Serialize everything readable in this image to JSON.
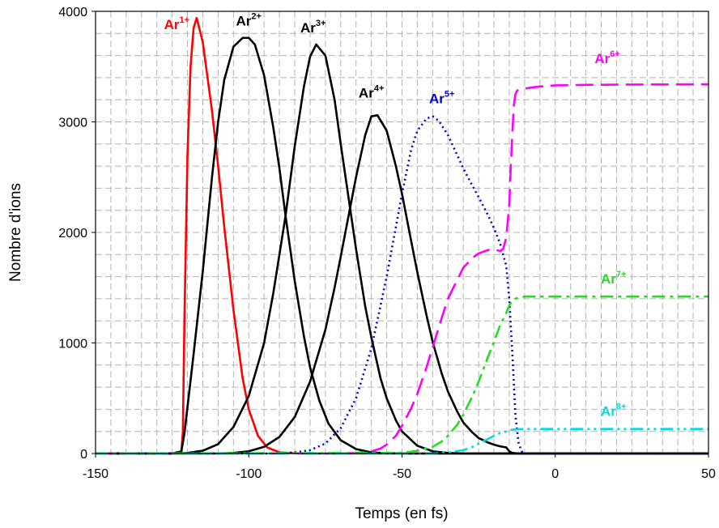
{
  "chart_data": {
    "type": "line",
    "title": "",
    "xlabel": "Temps (en fs)",
    "ylabel": "Nombre d'ions",
    "xlim": [
      -150,
      50
    ],
    "ylim": [
      0,
      4000
    ],
    "x_ticks": [
      -150,
      -100,
      -50,
      0,
      50
    ],
    "y_ticks": [
      0,
      1000,
      2000,
      3000,
      4000
    ],
    "x_tick_labels": [
      "-150",
      "-100",
      "-50",
      "0",
      "50"
    ],
    "y_tick_labels": [
      "0",
      "1000",
      "2000",
      "3000",
      "4000"
    ],
    "grid": "dashed major and minor grid",
    "legend": "inline labels near each curve",
    "series": [
      {
        "name": "Ar1+",
        "base": "Ar",
        "charge": "1+",
        "color": "#ff0000",
        "dash": "solid",
        "label_at": [
          -123.5,
          3840
        ],
        "x": [
          -150,
          -125,
          -122,
          -121.5,
          -121,
          -120,
          -119,
          -118,
          -117,
          -115,
          -112,
          -110,
          -108,
          -105,
          -102,
          -100,
          -97,
          -94,
          -90,
          -85,
          -80,
          -70,
          -60,
          50
        ],
        "y": [
          0,
          0,
          10,
          200,
          1200,
          2700,
          3500,
          3850,
          3940,
          3720,
          3100,
          2600,
          2050,
          1300,
          680,
          400,
          160,
          55,
          10,
          2,
          0,
          0,
          0,
          0
        ]
      },
      {
        "name": "Ar2+",
        "base": "Ar",
        "charge": "2+",
        "color": "#000000",
        "dash": "solid",
        "label_at": [
          -100,
          3870
        ],
        "x": [
          -150,
          -125,
          -122,
          -121,
          -120,
          -118,
          -115,
          -112,
          -110,
          -108,
          -105,
          -102,
          -100,
          -98,
          -95,
          -92,
          -90,
          -88,
          -85,
          -82,
          -80,
          -77,
          -74,
          -70,
          -65,
          -60,
          -55,
          -50,
          50
        ],
        "y": [
          0,
          0,
          20,
          180,
          420,
          900,
          1650,
          2500,
          3000,
          3380,
          3680,
          3760,
          3760,
          3700,
          3420,
          2950,
          2580,
          2150,
          1560,
          1060,
          780,
          480,
          270,
          120,
          40,
          10,
          2,
          0,
          0
        ]
      },
      {
        "name": "Ar3+",
        "base": "Ar",
        "charge": "3+",
        "color": "#000000",
        "dash": "solid",
        "label_at": [
          -79,
          3810
        ],
        "x": [
          -150,
          -125,
          -120,
          -115,
          -110,
          -105,
          -100,
          -95,
          -92,
          -88,
          -85,
          -82,
          -80,
          -78,
          -75,
          -72,
          -70,
          -68,
          -65,
          -62,
          -60,
          -57,
          -55,
          -52,
          -50,
          -45,
          -40,
          -35,
          -30,
          50
        ],
        "y": [
          0,
          0,
          5,
          25,
          85,
          240,
          520,
          1000,
          1450,
          2150,
          2780,
          3320,
          3590,
          3700,
          3600,
          3200,
          2800,
          2420,
          1850,
          1330,
          1050,
          680,
          500,
          300,
          200,
          70,
          20,
          5,
          0,
          0
        ]
      },
      {
        "name": "Ar4+",
        "base": "Ar",
        "charge": "4+",
        "color": "#000000",
        "dash": "solid",
        "label_at": [
          -60,
          3220
        ],
        "x": [
          -150,
          -110,
          -105,
          -100,
          -95,
          -90,
          -85,
          -80,
          -75,
          -72,
          -70,
          -68,
          -65,
          -62,
          -60,
          -58,
          -55,
          -52,
          -50,
          -47,
          -45,
          -42,
          -40,
          -37,
          -35,
          -32,
          -30,
          -27,
          -25,
          -22,
          -20,
          -18,
          -16,
          -15,
          -14,
          -12,
          -10,
          50
        ],
        "y": [
          0,
          0,
          5,
          20,
          60,
          150,
          330,
          650,
          1120,
          1500,
          1780,
          2070,
          2500,
          2880,
          3050,
          3060,
          2920,
          2600,
          2350,
          1920,
          1640,
          1250,
          1010,
          720,
          560,
          380,
          280,
          190,
          140,
          100,
          80,
          65,
          55,
          20,
          5,
          0,
          0,
          0
        ]
      },
      {
        "name": "Ar5+",
        "base": "Ar",
        "charge": "5+",
        "color": "#0000cc",
        "dash": "dotted",
        "label_at": [
          -37,
          3170
        ],
        "x": [
          -150,
          -90,
          -85,
          -80,
          -75,
          -70,
          -65,
          -60,
          -55,
          -52,
          -50,
          -47,
          -45,
          -42,
          -40,
          -38,
          -35,
          -32,
          -30,
          -27,
          -25,
          -22,
          -20,
          -18,
          -16,
          -15,
          -14,
          -13,
          -12,
          -11,
          -10,
          50
        ],
        "y": [
          0,
          0,
          10,
          30,
          90,
          230,
          500,
          950,
          1600,
          2050,
          2350,
          2750,
          2920,
          3030,
          3050,
          3010,
          2880,
          2700,
          2580,
          2420,
          2320,
          2160,
          2040,
          1900,
          1700,
          1400,
          900,
          350,
          100,
          20,
          0,
          0
        ]
      },
      {
        "name": "Ar6+",
        "base": "Ar",
        "charge": "6+",
        "color": "#ff00ff",
        "dash": "dashed",
        "label_at": [
          17,
          3530
        ],
        "x": [
          -150,
          -70,
          -65,
          -60,
          -57,
          -55,
          -52,
          -50,
          -47,
          -45,
          -42,
          -40,
          -37,
          -35,
          -32,
          -30,
          -27,
          -25,
          -22,
          -20,
          -18,
          -17,
          -16,
          -15,
          -14.5,
          -14,
          -13.5,
          -13,
          -12.5,
          -12,
          -11,
          -10,
          -8,
          -5,
          0,
          10,
          20,
          30,
          40,
          50
        ],
        "y": [
          0,
          0,
          5,
          20,
          45,
          80,
          160,
          250,
          410,
          540,
          780,
          960,
          1230,
          1400,
          1570,
          1680,
          1770,
          1810,
          1840,
          1850,
          1830,
          1850,
          1950,
          2250,
          2600,
          2900,
          3150,
          3250,
          3280,
          3290,
          3295,
          3300,
          3310,
          3320,
          3330,
          3335,
          3337,
          3338,
          3339,
          3340
        ]
      },
      {
        "name": "Ar7+",
        "base": "Ar",
        "charge": "7+",
        "color": "#22dd22",
        "dash": "dashdot",
        "label_at": [
          19,
          1540
        ],
        "x": [
          -150,
          -50,
          -45,
          -40,
          -37,
          -35,
          -32,
          -30,
          -27,
          -25,
          -22,
          -20,
          -18,
          -16,
          -15,
          -14,
          -13,
          -12,
          -11,
          -10,
          -5,
          0,
          10,
          20,
          30,
          40,
          50
        ],
        "y": [
          0,
          5,
          25,
          60,
          110,
          160,
          260,
          350,
          520,
          650,
          870,
          1010,
          1160,
          1270,
          1340,
          1380,
          1400,
          1410,
          1415,
          1420,
          1420,
          1420,
          1420,
          1420,
          1420,
          1420,
          1420
        ]
      },
      {
        "name": "Ar8+",
        "base": "Ar",
        "charge": "8+",
        "color": "#00dddd",
        "dash": "dashdotdot",
        "label_at": [
          19,
          340
        ],
        "x": [
          -150,
          -40,
          -35,
          -30,
          -27,
          -25,
          -22,
          -20,
          -18,
          -16,
          -15,
          -14,
          -13,
          -12,
          -11,
          -10,
          -5,
          0,
          10,
          20,
          30,
          40,
          50
        ],
        "y": [
          0,
          0,
          10,
          30,
          60,
          90,
          130,
          160,
          185,
          200,
          210,
          215,
          218,
          220,
          221,
          222,
          222,
          222,
          222,
          222,
          222,
          222,
          222
        ]
      }
    ]
  }
}
